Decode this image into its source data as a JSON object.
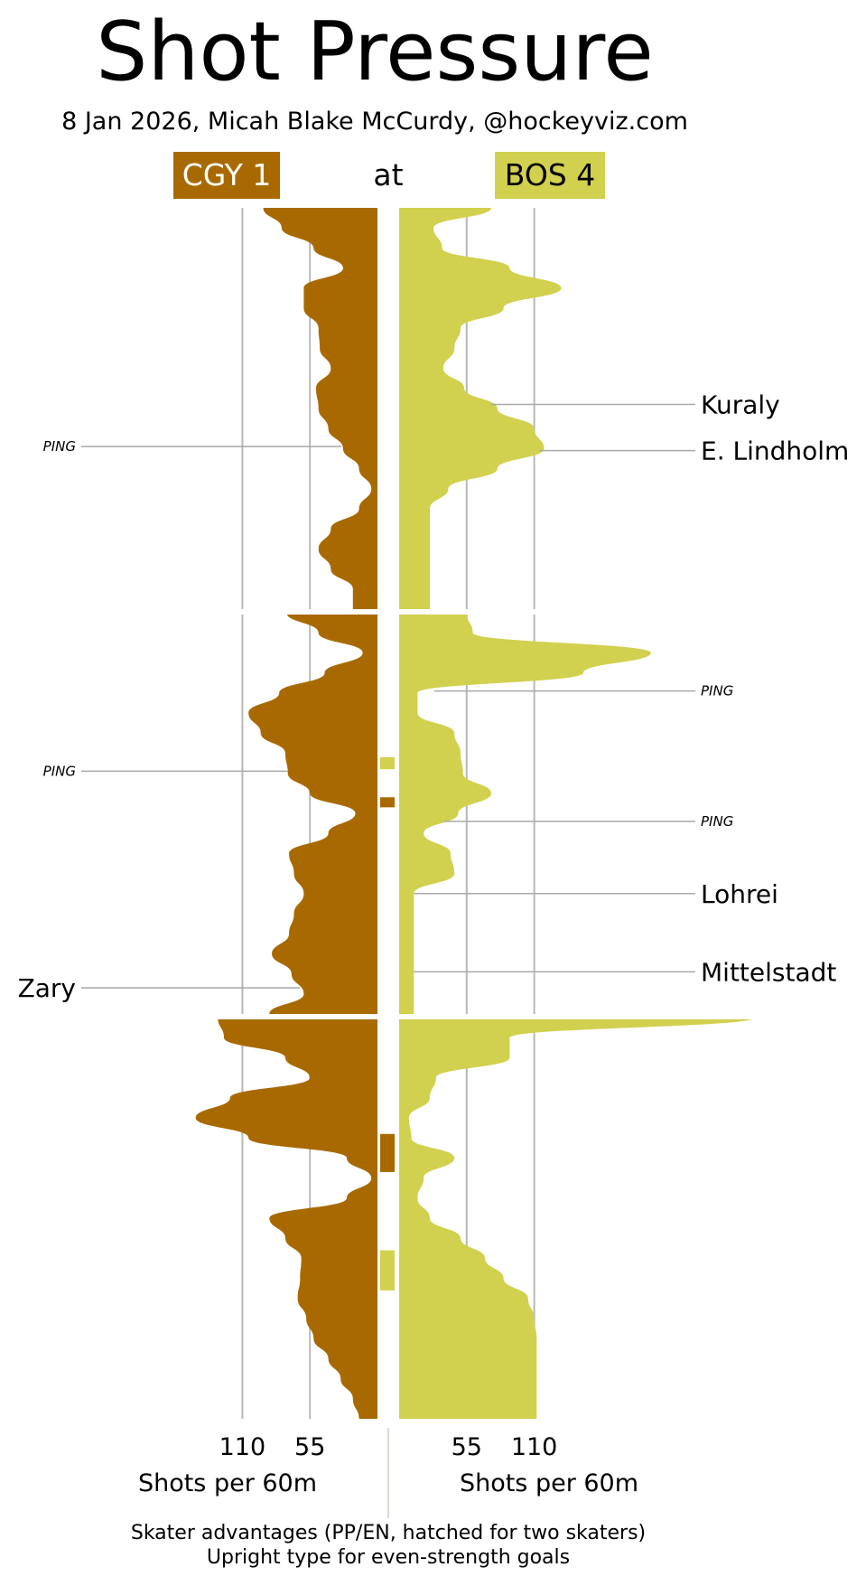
{
  "title": "Shot Pressure",
  "subtitle": "8 Jan 2026, Micah Blake McCurdy, @hockeyviz.com",
  "at_label": "at",
  "teams": {
    "away": {
      "label": "CGY 1",
      "color": "#a86a00",
      "text_color": "#ffffff"
    },
    "home": {
      "label": "BOS 4",
      "color": "#d2d04f",
      "text_color": "#000000"
    }
  },
  "footnote": [
    "Skater advantages (PP/EN, hatched for two skaters)",
    "Upright type for even-strength goals"
  ],
  "chart_data": {
    "type": "area",
    "description_units": "Shots per 60m by game minute",
    "x_label": "",
    "axis_labels": {
      "left": "Shots per 60m",
      "right": "Shots per 60m"
    },
    "ticks": {
      "left": [
        110,
        55
      ],
      "right": [
        55,
        110
      ]
    },
    "value_range": [
      0,
      160
    ],
    "time_range": [
      0,
      60
    ],
    "periods": [
      [
        0,
        20
      ],
      [
        20,
        40
      ],
      [
        40,
        60
      ]
    ],
    "grid": true,
    "series": [
      {
        "name": "CGY 1",
        "side": "left",
        "color": "#a86a00",
        "points": [
          [
            0,
            93
          ],
          [
            1,
            78
          ],
          [
            2,
            52
          ],
          [
            3,
            28
          ],
          [
            4,
            60
          ],
          [
            5,
            60
          ],
          [
            6,
            48
          ],
          [
            7,
            47
          ],
          [
            8,
            38
          ],
          [
            9,
            50
          ],
          [
            10,
            48
          ],
          [
            11,
            40
          ],
          [
            12,
            28
          ],
          [
            13,
            15
          ],
          [
            14,
            5
          ],
          [
            15,
            15
          ],
          [
            16,
            38
          ],
          [
            17,
            48
          ],
          [
            18,
            38
          ],
          [
            19,
            20
          ],
          [
            20,
            20
          ],
          [
            20,
            74
          ],
          [
            21,
            48
          ],
          [
            22,
            12
          ],
          [
            23,
            43
          ],
          [
            24,
            80
          ],
          [
            25,
            105
          ],
          [
            26,
            95
          ],
          [
            27,
            75
          ],
          [
            28,
            73
          ],
          [
            29,
            55
          ],
          [
            30,
            18
          ],
          [
            31,
            40
          ],
          [
            32,
            72
          ],
          [
            33,
            68
          ],
          [
            34,
            60
          ],
          [
            35,
            68
          ],
          [
            36,
            72
          ],
          [
            37,
            86
          ],
          [
            38,
            70
          ],
          [
            39,
            60
          ],
          [
            40,
            88
          ],
          [
            40,
            130
          ],
          [
            41,
            125
          ],
          [
            42,
            75
          ],
          [
            43,
            55
          ],
          [
            44,
            120
          ],
          [
            45,
            148
          ],
          [
            46,
            105
          ],
          [
            47,
            25
          ],
          [
            48,
            5
          ],
          [
            49,
            25
          ],
          [
            50,
            88
          ],
          [
            51,
            75
          ],
          [
            52,
            62
          ],
          [
            53,
            63
          ],
          [
            54,
            65
          ],
          [
            55,
            58
          ],
          [
            56,
            52
          ],
          [
            57,
            40
          ],
          [
            58,
            30
          ],
          [
            59,
            20
          ],
          [
            60,
            15
          ]
        ]
      },
      {
        "name": "BOS 4",
        "side": "right",
        "color": "#d2d04f",
        "points": [
          [
            0,
            75
          ],
          [
            1,
            28
          ],
          [
            2,
            35
          ],
          [
            3,
            90
          ],
          [
            4,
            132
          ],
          [
            5,
            85
          ],
          [
            6,
            50
          ],
          [
            7,
            45
          ],
          [
            8,
            36
          ],
          [
            9,
            53
          ],
          [
            10,
            80
          ],
          [
            11,
            110
          ],
          [
            12,
            118
          ],
          [
            13,
            80
          ],
          [
            14,
            40
          ],
          [
            15,
            25
          ],
          [
            16,
            25
          ],
          [
            16,
            25
          ],
          [
            20,
            25
          ],
          [
            20,
            55
          ],
          [
            21,
            60
          ],
          [
            22,
            205
          ],
          [
            23,
            150
          ],
          [
            24,
            15
          ],
          [
            25,
            15
          ],
          [
            26,
            45
          ],
          [
            27,
            50
          ],
          [
            28,
            52
          ],
          [
            29,
            75
          ],
          [
            30,
            48
          ],
          [
            31,
            20
          ],
          [
            32,
            42
          ],
          [
            33,
            45
          ],
          [
            34,
            12
          ],
          [
            35,
            12
          ],
          [
            36,
            12
          ],
          [
            40,
            12
          ],
          [
            40,
            290
          ],
          [
            41,
            90
          ],
          [
            42,
            90
          ],
          [
            43,
            30
          ],
          [
            44,
            25
          ],
          [
            45,
            8
          ],
          [
            46,
            10
          ],
          [
            47,
            45
          ],
          [
            48,
            20
          ],
          [
            49,
            15
          ],
          [
            50,
            25
          ],
          [
            51,
            50
          ],
          [
            52,
            70
          ],
          [
            53,
            85
          ],
          [
            54,
            105
          ],
          [
            55,
            110
          ],
          [
            56,
            112
          ],
          [
            60,
            112
          ]
        ]
      }
    ],
    "skater_advantages": [
      {
        "team": "BOS 4",
        "start": 27.2,
        "end": 27.8
      },
      {
        "team": "CGY 1",
        "start": 29.2,
        "end": 29.7
      },
      {
        "team": "CGY 1",
        "start": 45.8,
        "end": 47.7
      },
      {
        "team": "BOS 4",
        "start": 51.6,
        "end": 53.6
      }
    ],
    "goals": [
      {
        "team": "CGY 1",
        "scorer": "PING",
        "minute": 11.9,
        "even_strength": false
      },
      {
        "team": "CGY 1",
        "scorer": "PING",
        "minute": 27.9,
        "even_strength": false
      },
      {
        "team": "CGY 1",
        "scorer": "Zary",
        "minute": 38.7,
        "even_strength": true
      },
      {
        "team": "BOS 4",
        "scorer": "Kuraly",
        "minute": 9.8,
        "even_strength": true
      },
      {
        "team": "BOS 4",
        "scorer": "E. Lindholm",
        "minute": 12.1,
        "even_strength": true
      },
      {
        "team": "BOS 4",
        "scorer": "PING",
        "minute": 23.9,
        "even_strength": false
      },
      {
        "team": "BOS 4",
        "scorer": "PING",
        "minute": 30.4,
        "even_strength": false
      },
      {
        "team": "BOS 4",
        "scorer": "Lohrei",
        "minute": 34.0,
        "even_strength": true
      },
      {
        "team": "BOS 4",
        "scorer": "Mittelstadt",
        "minute": 37.9,
        "even_strength": true
      }
    ]
  }
}
